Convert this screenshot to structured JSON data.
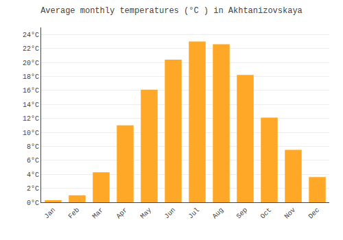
{
  "chart_data": {
    "type": "bar",
    "title": "Average monthly temperatures (°C ) in Akhtanizovskaya",
    "categories": [
      "Jan",
      "Feb",
      "Mar",
      "Apr",
      "May",
      "Jun",
      "Jul",
      "Aug",
      "Sep",
      "Oct",
      "Nov",
      "Dec"
    ],
    "values": [
      0.3,
      1.0,
      4.3,
      11.0,
      16.1,
      20.4,
      23.0,
      22.6,
      18.2,
      12.1,
      7.5,
      3.6
    ],
    "color": "#FFA726",
    "ylim": [
      0,
      25
    ],
    "yticks": [
      {
        "value": 0,
        "label": "0°C"
      },
      {
        "value": 2,
        "label": "2°C"
      },
      {
        "value": 4,
        "label": "4°C"
      },
      {
        "value": 6,
        "label": "6°C"
      },
      {
        "value": 8,
        "label": "8°C"
      },
      {
        "value": 10,
        "label": "10°C"
      },
      {
        "value": 12,
        "label": "12°C"
      },
      {
        "value": 14,
        "label": "14°C"
      },
      {
        "value": 16,
        "label": "16°C"
      },
      {
        "value": 18,
        "label": "18°C"
      },
      {
        "value": 20,
        "label": "20°C"
      },
      {
        "value": 22,
        "label": "22°C"
      },
      {
        "value": 24,
        "label": "24°C"
      }
    ],
    "grid": true
  }
}
